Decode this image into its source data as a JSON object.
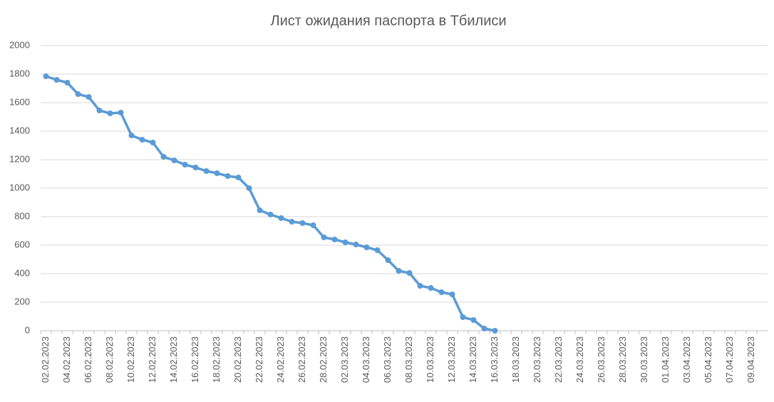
{
  "chart_data": {
    "type": "line",
    "title": "Лист ожидания паспорта в Тбилиси",
    "categories": [
      "02.02.2023",
      null,
      "04.02.2023",
      null,
      "06.02.2023",
      null,
      "08.02.2023",
      null,
      "10.02.2023",
      null,
      "12.02.2023",
      null,
      "14.02.2023",
      null,
      "16.02.2023",
      null,
      "18.02.2023",
      null,
      "20.02.2023",
      null,
      "22.02.2023",
      null,
      "24.02.2023",
      null,
      "26.02.2023",
      null,
      "28.02.2023",
      null,
      "02.03.2023",
      null,
      "04.03.2023",
      null,
      "06.03.2023",
      null,
      "08.03.2023",
      null,
      "10.03.2023",
      null,
      "12.03.2023",
      null,
      "14.03.2023",
      null,
      "16.03.2023",
      null,
      "18.03.2023",
      null,
      "20.03.2023",
      null,
      "22.03.2023",
      null,
      "24.03.2023",
      null,
      "26.03.2023",
      null,
      "28.03.2023",
      null,
      "30.03.2023",
      null,
      "01.04.2023",
      null,
      "03.04.2023",
      null,
      "05.04.2023",
      null,
      "07.04.2023",
      null,
      "09.04.2023",
      null
    ],
    "values": [
      1785,
      1760,
      1740,
      1660,
      1640,
      1545,
      1525,
      1530,
      1370,
      1340,
      1320,
      1220,
      1195,
      1165,
      1145,
      1120,
      1105,
      1085,
      1075,
      1000,
      845,
      815,
      790,
      765,
      755,
      740,
      655,
      640,
      620,
      605,
      585,
      565,
      495,
      420,
      405,
      315,
      300,
      270,
      255,
      95,
      75,
      15,
      0,
      null,
      null,
      null,
      null,
      null,
      null,
      null,
      null,
      null,
      null,
      null,
      null,
      null,
      null,
      null,
      null,
      null,
      null,
      null,
      null,
      null,
      null,
      null,
      null,
      null
    ],
    "color": "#5b9bd5",
    "ylim": [
      0,
      2000
    ],
    "yticks": [
      0,
      200,
      400,
      600,
      800,
      1000,
      1200,
      1400,
      1600,
      1800,
      2000
    ],
    "grid": true
  }
}
